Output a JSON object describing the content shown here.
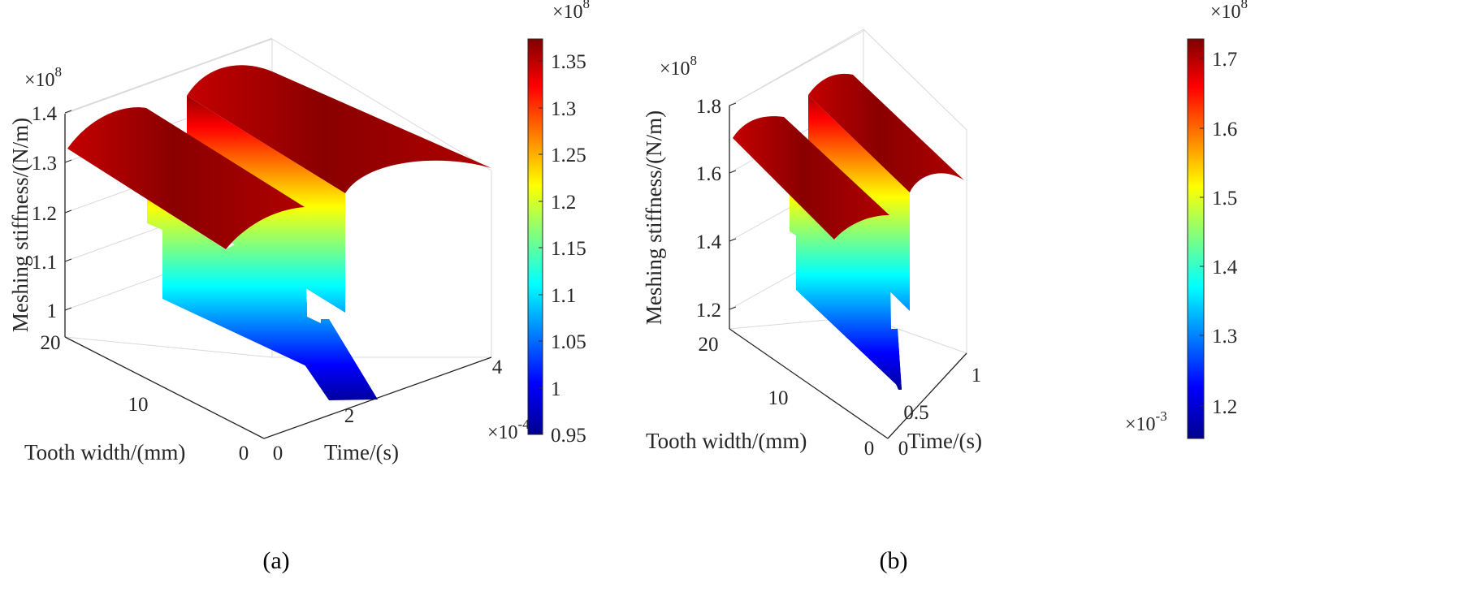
{
  "chart_data": [
    {
      "type": "surface",
      "caption": "(a)",
      "xlabel": "Time/(s)",
      "ylabel": "Tooth width/(mm)",
      "zlabel": "Meshing stiffness/(N/m)",
      "x_ticks": [
        "0",
        "2",
        "4"
      ],
      "x_exponent": "×10",
      "x_exponent_power": "-4",
      "y_ticks": [
        "0",
        "10",
        "20"
      ],
      "z_ticks": [
        "1",
        "1.1",
        "1.2",
        "1.3",
        "1.4"
      ],
      "z_exponent": "×10",
      "z_exponent_power": "8",
      "xlim": [
        0,
        0.0004
      ],
      "ylim": [
        0,
        20
      ],
      "surface": {
        "double_tooth_stiffness_range": [
          133000000.0,
          138000000.0
        ],
        "single_tooth_stiffness_range": [
          95000000.0,
          115000000.0
        ]
      },
      "colorbar": {
        "colormap": "jet",
        "ticks": [
          "0.95",
          "1",
          "1.05",
          "1.1",
          "1.15",
          "1.2",
          "1.25",
          "1.3",
          "1.35"
        ],
        "exponent": "×10",
        "exponent_power": "8",
        "clim": [
          0.95,
          1.38
        ]
      },
      "grid": true
    },
    {
      "type": "surface",
      "caption": "(b)",
      "xlabel": "Time/(s)",
      "ylabel": "Tooth width/(mm)",
      "zlabel": "Meshing stiffness/(N/m)",
      "x_ticks": [
        "0",
        "0.5",
        "1"
      ],
      "x_exponent": "×10",
      "x_exponent_power": "-3",
      "y_ticks": [
        "0",
        "10",
        "20"
      ],
      "z_ticks": [
        "1.2",
        "1.4",
        "1.6",
        "1.8"
      ],
      "z_exponent": "×10",
      "z_exponent_power": "8",
      "xlim": [
        0,
        0.001
      ],
      "ylim": [
        0,
        20
      ],
      "surface": {
        "double_tooth_stiffness_range": [
          169000000.0,
          173000000.0
        ],
        "single_tooth_stiffness_range": [
          116000000.0,
          145000000.0
        ]
      },
      "colorbar": {
        "colormap": "jet",
        "ticks": [
          "1.2",
          "1.3",
          "1.4",
          "1.5",
          "1.6",
          "1.7"
        ],
        "exponent": "×10",
        "exponent_power": "8",
        "clim": [
          1.16,
          1.73
        ]
      },
      "grid": true
    }
  ]
}
